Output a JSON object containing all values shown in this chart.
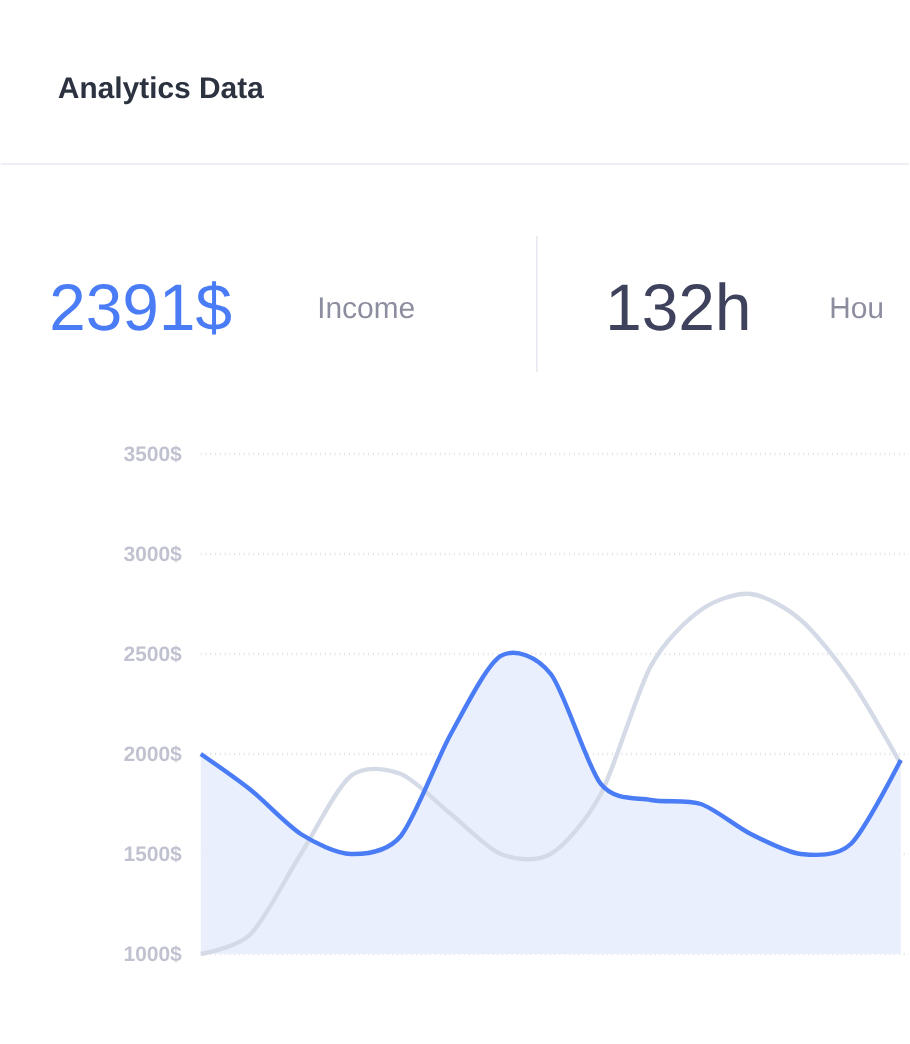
{
  "chart_data": {
    "type": "line",
    "title": "Analytics Data",
    "annotations": [
      "2391$",
      "Income",
      "132h",
      "Hou"
    ],
    "categories": [
      null,
      null,
      null,
      null,
      null,
      null,
      null,
      null,
      null,
      null,
      null,
      null,
      null,
      null,
      null
    ],
    "series": [
      {
        "type": "area",
        "color": "#4a7cf6",
        "values": [
          2000,
          1820,
          1600,
          1500,
          1590,
          2100,
          2490,
          2400,
          1850,
          1770,
          1750,
          1600,
          1500,
          1550,
          1970
        ]
      },
      {
        "type": "line",
        "color": "#d5dbe6",
        "values": [
          1000,
          1100,
          1500,
          1890,
          1900,
          1700,
          1500,
          1500,
          1800,
          2440,
          2720,
          2800,
          2670,
          2370,
          1950
        ]
      }
    ],
    "ylim": [
      1000,
      3500
    ],
    "yticks": [
      {
        "value": 1000,
        "label": "1000$"
      },
      {
        "value": 1500,
        "label": "1500$"
      },
      {
        "value": 2000,
        "label": "2000$"
      },
      {
        "value": 2500,
        "label": "2500$"
      },
      {
        "value": 3000,
        "label": "3000$"
      },
      {
        "value": 3500,
        "label": "3500$"
      }
    ],
    "grid": "y",
    "legend": false,
    "marker": "none",
    "line_style": "solid",
    "tick_labels": "y"
  }
}
